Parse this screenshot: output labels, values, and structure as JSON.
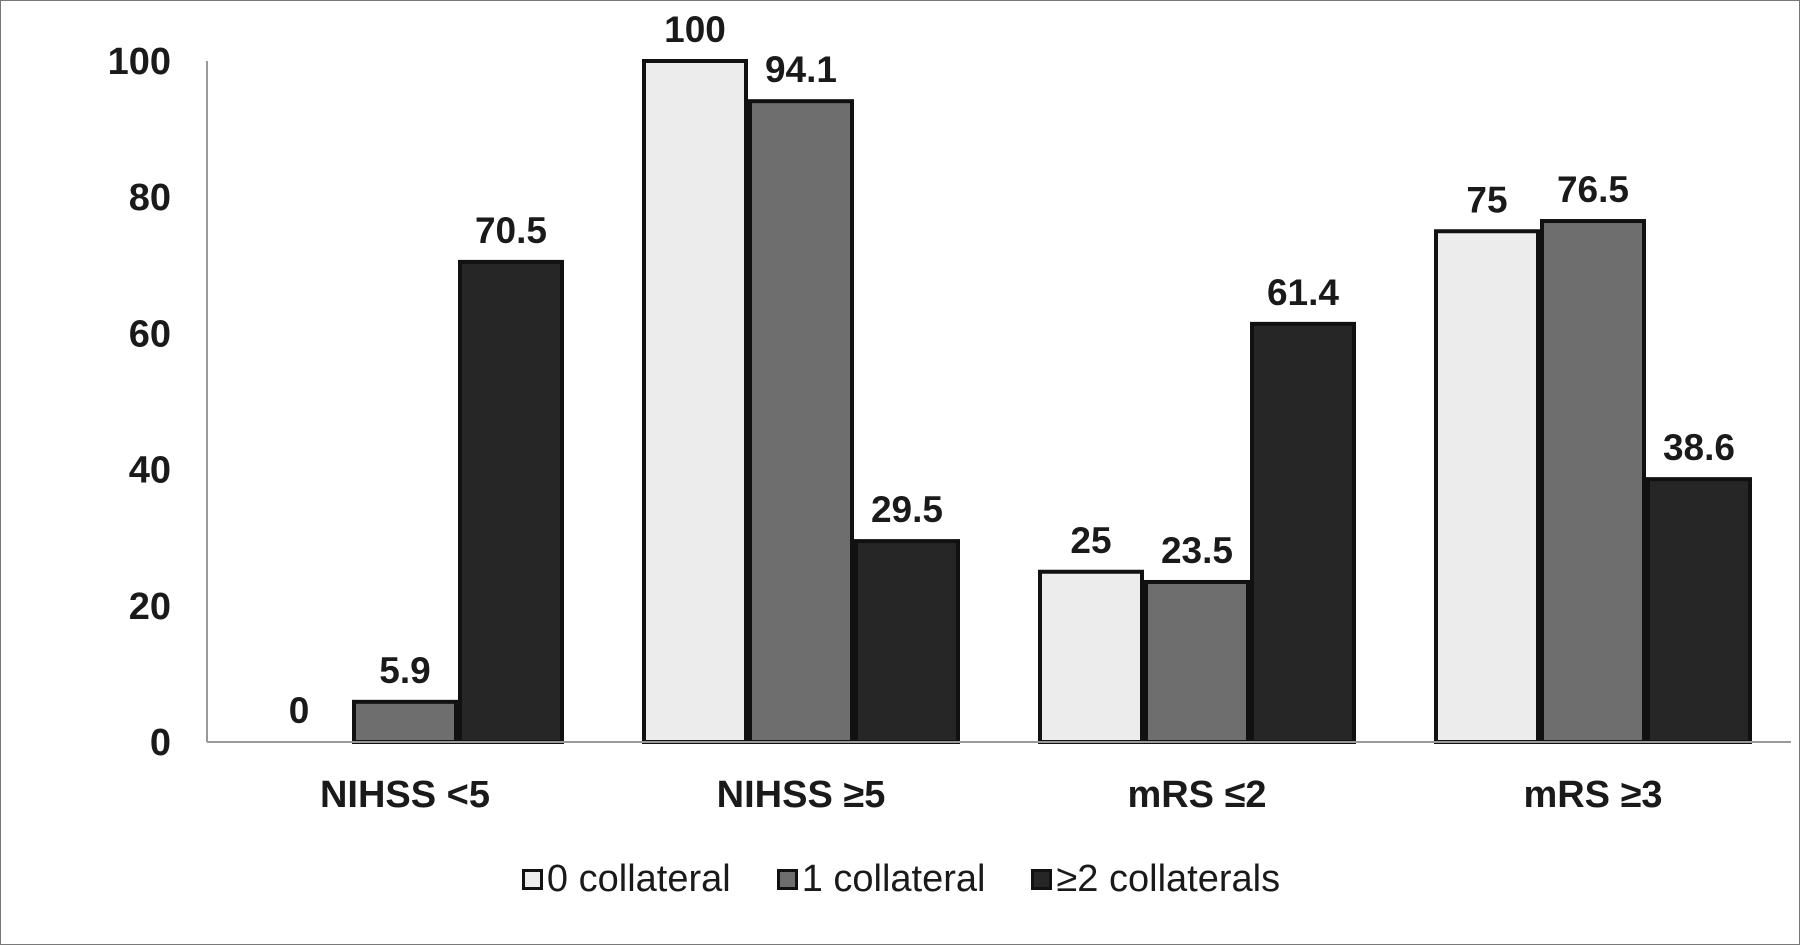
{
  "chart_data": {
    "type": "bar",
    "categories": [
      "NIHSS <5",
      "NIHSS ≥5",
      "mRS ≤2",
      "mRS ≥3"
    ],
    "series": [
      {
        "name": "0 collateral",
        "values": [
          0,
          100,
          25,
          75
        ],
        "labels": [
          "0",
          "100",
          "25",
          "75"
        ],
        "color": "#ececec"
      },
      {
        "name": "1 collateral",
        "values": [
          5.9,
          94.1,
          23.5,
          76.5
        ],
        "labels": [
          "5.9",
          "94.1",
          "23.5",
          "76.5"
        ],
        "color": "#6e6e6e"
      },
      {
        "name": "≥2 collaterals",
        "values": [
          70.5,
          29.5,
          61.4,
          38.6
        ],
        "labels": [
          "70.5",
          "29.5",
          "61.4",
          "38.6"
        ],
        "color": "#262626"
      }
    ],
    "yticks": [
      "0",
      "20",
      "40",
      "60",
      "80",
      "100"
    ],
    "ylim": [
      0,
      100
    ],
    "grid": false,
    "legend_position": "bottom"
  }
}
